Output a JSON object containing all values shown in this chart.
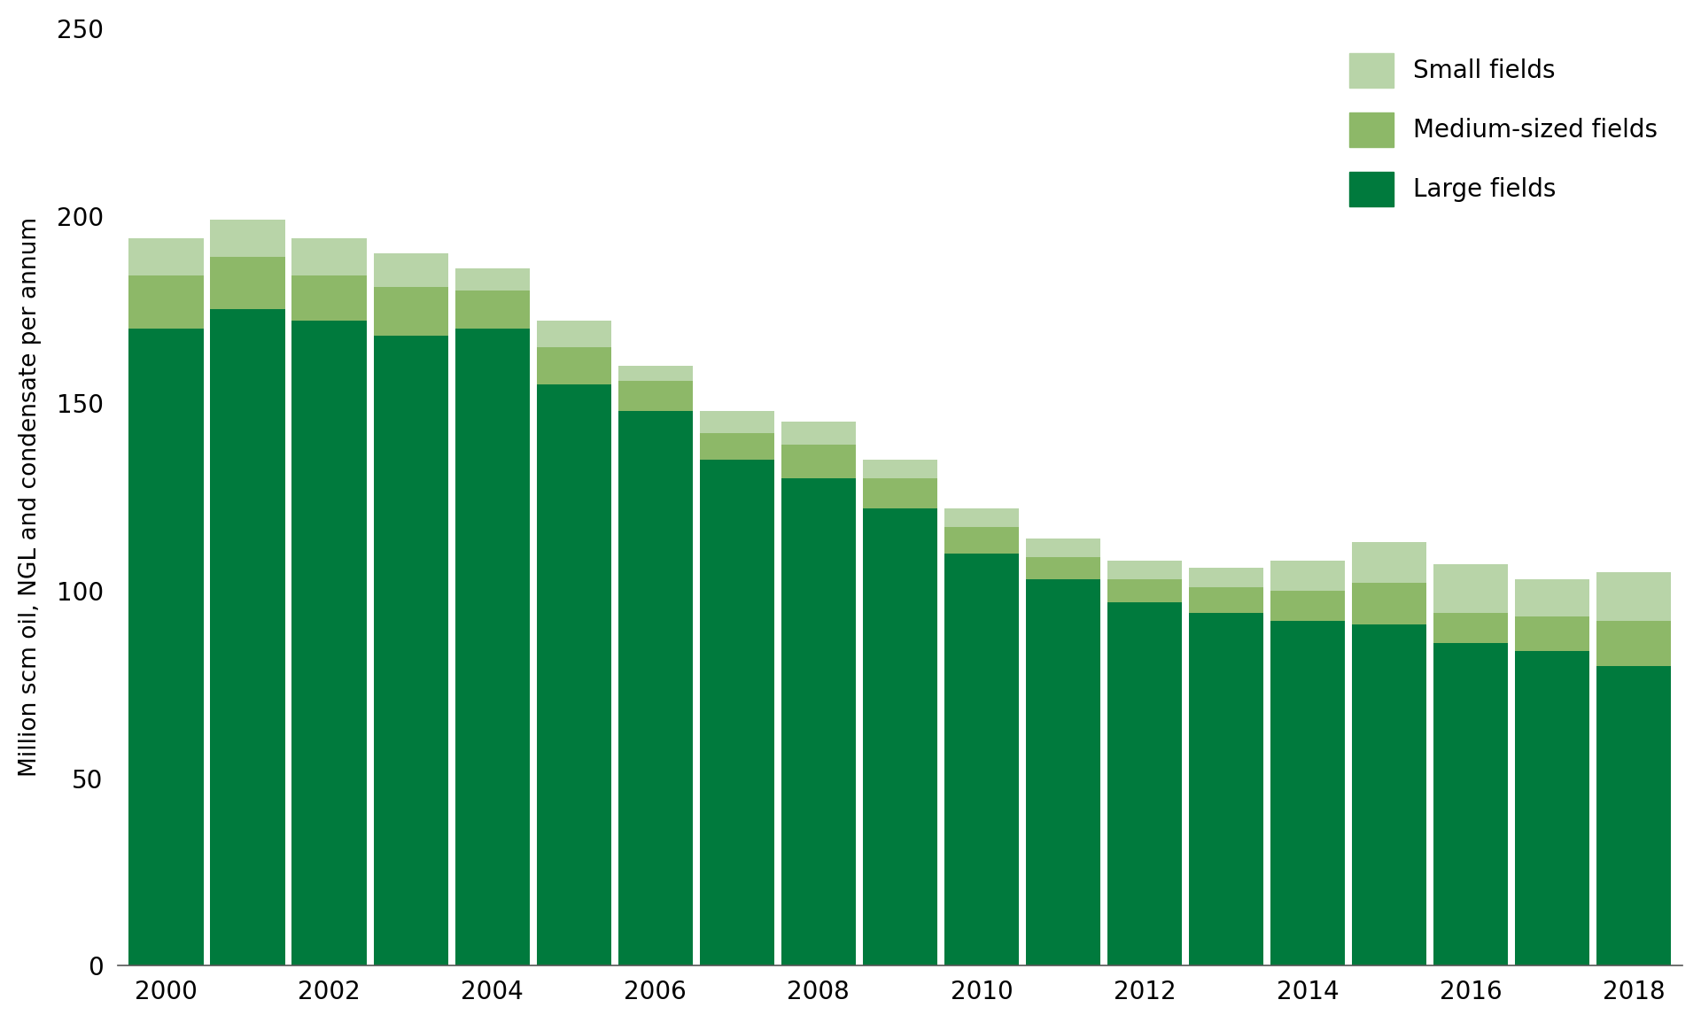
{
  "years": [
    2000,
    2001,
    2002,
    2003,
    2004,
    2005,
    2006,
    2007,
    2008,
    2009,
    2010,
    2011,
    2012,
    2013,
    2014,
    2015,
    2016,
    2017,
    2018
  ],
  "xtick_labels": [
    "2000",
    "",
    "2002",
    "",
    "2004",
    "",
    "2006",
    "",
    "2008",
    "",
    "2010",
    "",
    "2012",
    "",
    "2014",
    "",
    "2016",
    "",
    "2018"
  ],
  "large_fields": [
    170,
    175,
    172,
    168,
    170,
    155,
    148,
    135,
    130,
    122,
    110,
    103,
    97,
    94,
    92,
    91,
    86,
    84,
    80
  ],
  "medium_fields": [
    14,
    14,
    12,
    13,
    10,
    10,
    8,
    7,
    9,
    8,
    7,
    6,
    6,
    7,
    8,
    11,
    8,
    9,
    12
  ],
  "small_fields": [
    10,
    10,
    10,
    9,
    6,
    7,
    4,
    6,
    6,
    5,
    5,
    5,
    5,
    5,
    8,
    11,
    13,
    10,
    13
  ],
  "color_large": "#007a3d",
  "color_medium": "#8db868",
  "color_small": "#b8d4a8",
  "ylabel": "Million scm oil, NGL and condensate per annum",
  "ylim": [
    0,
    250
  ],
  "yticks": [
    0,
    50,
    100,
    150,
    200,
    250
  ],
  "background_color": "#ffffff",
  "bar_width": 0.92,
  "legend_fontsize": 20,
  "tick_fontsize": 20,
  "label_fontsize": 19
}
